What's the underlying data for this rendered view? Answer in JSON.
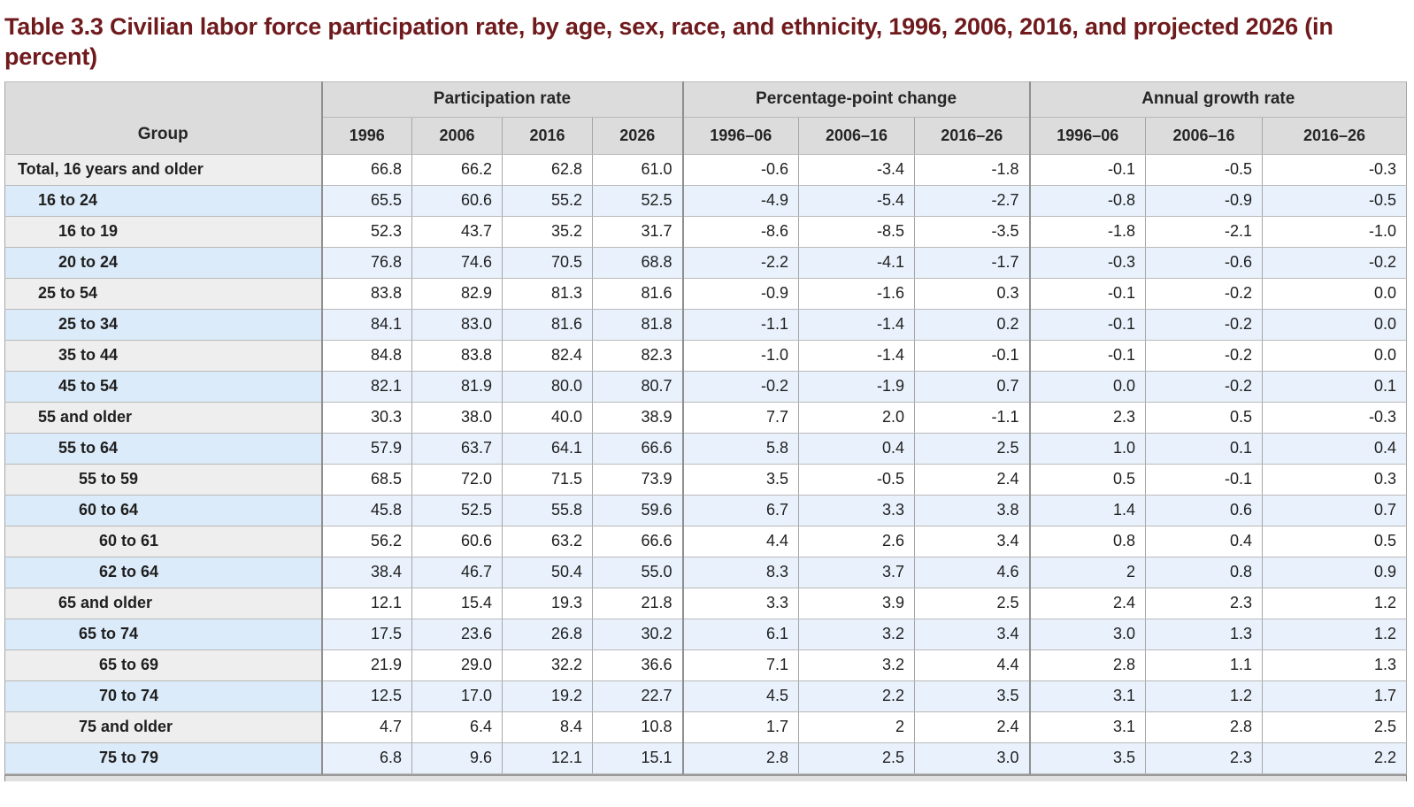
{
  "title": "Table 3.3 Civilian labor force participation rate, by age, sex, race, and ethnicity, 1996, 2006, 2016, and projected 2026 (in percent)",
  "colors": {
    "title_text": "#6f1a1d",
    "header_bg": "#dcdcdc",
    "row_white_bg": "#ffffff",
    "row_white_label_bg": "#eeeeee",
    "row_blue_bg": "#e9f2fc",
    "row_blue_label_bg": "#dcebf9",
    "border": "#a6a6a6"
  },
  "table": {
    "group_header": "Group",
    "col_groups": [
      {
        "label": "Participation rate",
        "cols": [
          "1996",
          "2006",
          "2016",
          "2026"
        ]
      },
      {
        "label": "Percentage-point change",
        "cols": [
          "1996–06",
          "2006–16",
          "2016–26"
        ]
      },
      {
        "label": "Annual growth rate",
        "cols": [
          "1996–06",
          "2006–16",
          "2016–26"
        ]
      }
    ],
    "rows": [
      {
        "group": "Total, 16 years and older",
        "indent": 0,
        "values": [
          "66.8",
          "66.2",
          "62.8",
          "61.0",
          "-0.6",
          "-3.4",
          "-1.8",
          "-0.1",
          "-0.5",
          "-0.3"
        ]
      },
      {
        "group": "16 to 24",
        "indent": 1,
        "values": [
          "65.5",
          "60.6",
          "55.2",
          "52.5",
          "-4.9",
          "-5.4",
          "-2.7",
          "-0.8",
          "-0.9",
          "-0.5"
        ]
      },
      {
        "group": "16 to 19",
        "indent": 2,
        "values": [
          "52.3",
          "43.7",
          "35.2",
          "31.7",
          "-8.6",
          "-8.5",
          "-3.5",
          "-1.8",
          "-2.1",
          "-1.0"
        ]
      },
      {
        "group": "20 to 24",
        "indent": 2,
        "values": [
          "76.8",
          "74.6",
          "70.5",
          "68.8",
          "-2.2",
          "-4.1",
          "-1.7",
          "-0.3",
          "-0.6",
          "-0.2"
        ]
      },
      {
        "group": "25 to 54",
        "indent": 1,
        "values": [
          "83.8",
          "82.9",
          "81.3",
          "81.6",
          "-0.9",
          "-1.6",
          "0.3",
          "-0.1",
          "-0.2",
          "0.0"
        ]
      },
      {
        "group": "25 to 34",
        "indent": 2,
        "values": [
          "84.1",
          "83.0",
          "81.6",
          "81.8",
          "-1.1",
          "-1.4",
          "0.2",
          "-0.1",
          "-0.2",
          "0.0"
        ]
      },
      {
        "group": "35 to 44",
        "indent": 2,
        "values": [
          "84.8",
          "83.8",
          "82.4",
          "82.3",
          "-1.0",
          "-1.4",
          "-0.1",
          "-0.1",
          "-0.2",
          "0.0"
        ]
      },
      {
        "group": "45 to 54",
        "indent": 2,
        "values": [
          "82.1",
          "81.9",
          "80.0",
          "80.7",
          "-0.2",
          "-1.9",
          "0.7",
          "0.0",
          "-0.2",
          "0.1"
        ]
      },
      {
        "group": "55 and older",
        "indent": 1,
        "values": [
          "30.3",
          "38.0",
          "40.0",
          "38.9",
          "7.7",
          "2.0",
          "-1.1",
          "2.3",
          "0.5",
          "-0.3"
        ]
      },
      {
        "group": "55 to 64",
        "indent": 2,
        "values": [
          "57.9",
          "63.7",
          "64.1",
          "66.6",
          "5.8",
          "0.4",
          "2.5",
          "1.0",
          "0.1",
          "0.4"
        ]
      },
      {
        "group": "55 to 59",
        "indent": 3,
        "values": [
          "68.5",
          "72.0",
          "71.5",
          "73.9",
          "3.5",
          "-0.5",
          "2.4",
          "0.5",
          "-0.1",
          "0.3"
        ]
      },
      {
        "group": "60 to 64",
        "indent": 3,
        "values": [
          "45.8",
          "52.5",
          "55.8",
          "59.6",
          "6.7",
          "3.3",
          "3.8",
          "1.4",
          "0.6",
          "0.7"
        ]
      },
      {
        "group": "60 to 61",
        "indent": 4,
        "values": [
          "56.2",
          "60.6",
          "63.2",
          "66.6",
          "4.4",
          "2.6",
          "3.4",
          "0.8",
          "0.4",
          "0.5"
        ]
      },
      {
        "group": "62 to 64",
        "indent": 4,
        "values": [
          "38.4",
          "46.7",
          "50.4",
          "55.0",
          "8.3",
          "3.7",
          "4.6",
          "2",
          "0.8",
          "0.9"
        ]
      },
      {
        "group": "65 and older",
        "indent": 2,
        "values": [
          "12.1",
          "15.4",
          "19.3",
          "21.8",
          "3.3",
          "3.9",
          "2.5",
          "2.4",
          "2.3",
          "1.2"
        ]
      },
      {
        "group": "65 to 74",
        "indent": 3,
        "values": [
          "17.5",
          "23.6",
          "26.8",
          "30.2",
          "6.1",
          "3.2",
          "3.4",
          "3.0",
          "1.3",
          "1.2"
        ]
      },
      {
        "group": "65 to 69",
        "indent": 4,
        "values": [
          "21.9",
          "29.0",
          "32.2",
          "36.6",
          "7.1",
          "3.2",
          "4.4",
          "2.8",
          "1.1",
          "1.3"
        ]
      },
      {
        "group": "70 to 74",
        "indent": 4,
        "values": [
          "12.5",
          "17.0",
          "19.2",
          "22.7",
          "4.5",
          "2.2",
          "3.5",
          "3.1",
          "1.2",
          "1.7"
        ]
      },
      {
        "group": "75 and older",
        "indent": 3,
        "values": [
          "4.7",
          "6.4",
          "8.4",
          "10.8",
          "1.7",
          "2",
          "2.4",
          "3.1",
          "2.8",
          "2.5"
        ]
      },
      {
        "group": "75 to 79",
        "indent": 4,
        "values": [
          "6.8",
          "9.6",
          "12.1",
          "15.1",
          "2.8",
          "2.5",
          "3.0",
          "3.5",
          "2.3",
          "2.2"
        ]
      }
    ]
  }
}
